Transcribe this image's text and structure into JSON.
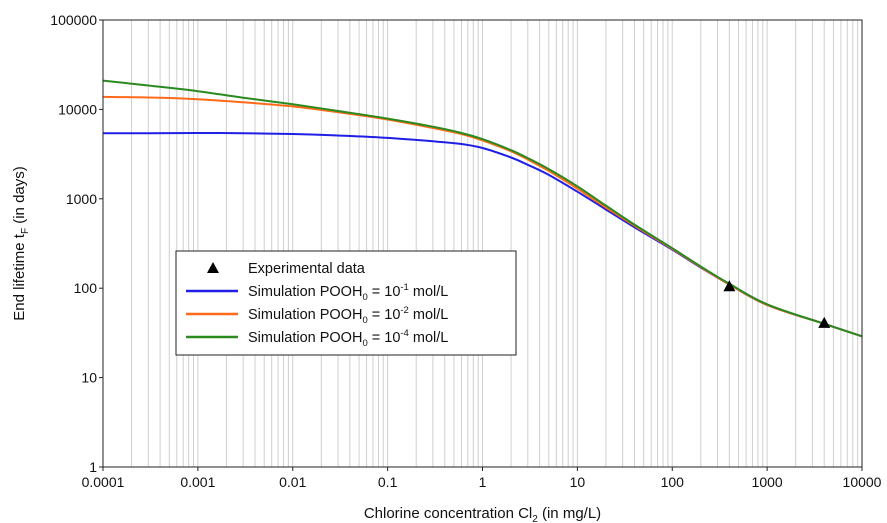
{
  "chart_data": {
    "type": "line",
    "x_scale": "log",
    "y_scale": "log",
    "xlim": [
      0.0001,
      10000
    ],
    "ylim": [
      1,
      100000
    ],
    "grid": "vertical minor and major gridlines on x axis",
    "x_ticks": [
      "0.0001",
      "0.001",
      "0.01",
      "0.1",
      "1",
      "10",
      "100",
      "1000",
      "10000"
    ],
    "y_ticks": [
      "1",
      "10",
      "100",
      "1000",
      "10000",
      "100000"
    ],
    "xlabel": {
      "text": "Chlorine concentration Cl",
      "sub": "2",
      "tail": " (in mg/L)"
    },
    "ylabel": {
      "text": "End lifetime t",
      "sub": "F",
      "tail": " (in days)"
    },
    "legend_position": "center-left",
    "legend": [
      {
        "kind": "marker",
        "text": "Experimental data",
        "sub": "",
        "sup": "",
        "tail": ""
      },
      {
        "kind": "line",
        "color": "#1f1fe6",
        "text": "Simulation POOH",
        "sub": "0",
        "mid": " = 10",
        "sup": "-1",
        "tail": " mol/L"
      },
      {
        "kind": "line",
        "color": "#ff6a1a",
        "text": "Simulation POOH",
        "sub": "0",
        "mid": " = 10",
        "sup": "-2",
        "tail": " mol/L"
      },
      {
        "kind": "line",
        "color": "#2a8a1e",
        "text": "Simulation POOH",
        "sub": "0",
        "mid": " = 10",
        "sup": "-4",
        "tail": " mol/L"
      }
    ],
    "series": [
      {
        "name": "Simulation POOH0 = 10-1 mol/L",
        "color": "#1f1fe6",
        "x": [
          0.0001,
          0.0003,
          0.001,
          0.003,
          0.01,
          0.03,
          0.1,
          0.3,
          0.6,
          1,
          2,
          3,
          5,
          10,
          20,
          40,
          100,
          200,
          400,
          1000,
          4000,
          10000
        ],
        "y": [
          5400,
          5420,
          5450,
          5420,
          5300,
          5100,
          4800,
          4400,
          4100,
          3700,
          2900,
          2400,
          1850,
          1200,
          760,
          480,
          270,
          170,
          110,
          65,
          40,
          29
        ]
      },
      {
        "name": "Simulation POOH0 = 10-2 mol/L",
        "color": "#ff6a1a",
        "x": [
          0.0001,
          0.0003,
          0.001,
          0.003,
          0.01,
          0.03,
          0.1,
          0.3,
          0.6,
          1,
          2,
          3,
          5,
          10,
          20,
          40,
          100,
          200,
          400,
          1000,
          4000,
          10000
        ],
        "y": [
          13800,
          13600,
          13000,
          12000,
          10800,
          9300,
          7700,
          6200,
          5300,
          4500,
          3400,
          2750,
          2050,
          1300,
          800,
          500,
          275,
          172,
          110,
          65,
          40,
          29
        ]
      },
      {
        "name": "Simulation POOH0 = 10-4 mol/L",
        "color": "#2a8a1e",
        "x": [
          0.0001,
          0.0003,
          0.001,
          0.003,
          0.01,
          0.03,
          0.1,
          0.3,
          0.6,
          1,
          2,
          3,
          5,
          10,
          20,
          40,
          100,
          200,
          400,
          1000,
          4000,
          10000
        ],
        "y": [
          21000,
          18500,
          16000,
          13500,
          11400,
          9600,
          7900,
          6400,
          5450,
          4650,
          3500,
          2850,
          2150,
          1380,
          840,
          515,
          280,
          175,
          112,
          66,
          40,
          29
        ]
      }
    ],
    "points": {
      "name": "Experimental data",
      "color": "#000000",
      "x": [
        400,
        4000
      ],
      "y": [
        105,
        41
      ]
    }
  }
}
